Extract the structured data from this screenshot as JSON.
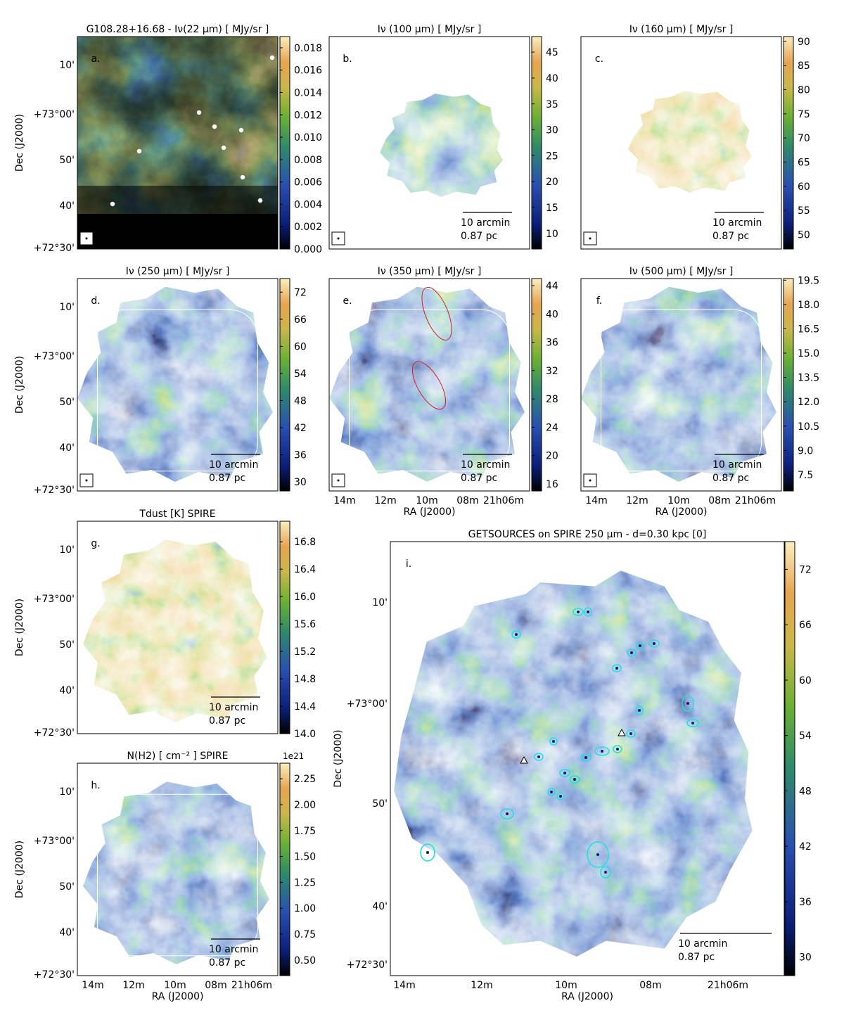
{
  "panels": [
    {
      "id": "a",
      "title": "G108.28+16.68 - Iν(22 μm)  [ MJy/sr ]",
      "letter": "a.",
      "colorbar_ticks": [
        "0.018",
        "0.016",
        "0.014",
        "0.012",
        "0.010",
        "0.008",
        "0.006",
        "0.004",
        "0.002",
        "0.000"
      ],
      "colorbar_range": [
        0.0,
        0.019
      ],
      "dec_ticks": [
        "10'",
        "+73°00'",
        "50'",
        "40'",
        "+72°30'"
      ],
      "ra_ticks": [],
      "scalebar": null
    },
    {
      "id": "b",
      "title": "Iν (100 μm) [ MJy/sr ]",
      "letter": "b.",
      "colorbar_ticks": [
        "45",
        "40",
        "35",
        "30",
        "25",
        "20",
        "15",
        "10"
      ],
      "colorbar_range": [
        7,
        48
      ],
      "dec_ticks": [],
      "ra_ticks": [],
      "scalebar": {
        "line1": "10 arcmin",
        "line2": "0.87 pc"
      }
    },
    {
      "id": "c",
      "title": "Iν (160 μm) [ MJy/sr ]",
      "letter": "c.",
      "colorbar_ticks": [
        "90",
        "85",
        "80",
        "75",
        "70",
        "65",
        "60",
        "55",
        "50"
      ],
      "colorbar_range": [
        47,
        91
      ],
      "dec_ticks": [],
      "ra_ticks": [],
      "scalebar": {
        "line1": "10 arcmin",
        "line2": "0.87 pc"
      }
    },
    {
      "id": "d",
      "title": "Iν (250 μm) [ MJy/sr ]",
      "letter": "d.",
      "colorbar_ticks": [
        "72",
        "66",
        "60",
        "54",
        "48",
        "42",
        "36",
        "30"
      ],
      "colorbar_range": [
        28,
        75
      ],
      "dec_ticks": [
        "10'",
        "+73°00'",
        "50'",
        "40'",
        "+72°30'"
      ],
      "ra_ticks": [],
      "scalebar": {
        "line1": "10 arcmin",
        "line2": "0.87 pc"
      }
    },
    {
      "id": "e",
      "title": "Iν (350 μm) [ MJy/sr ]",
      "letter": "e.",
      "colorbar_ticks": [
        "44",
        "40",
        "36",
        "32",
        "28",
        "24",
        "20",
        "16"
      ],
      "colorbar_range": [
        15,
        45
      ],
      "dec_ticks": [],
      "ra_ticks": [
        "14m",
        "12m",
        "10m",
        "08m",
        "21h06m"
      ],
      "ra_label": "RA (J2000)",
      "scalebar": {
        "line1": "10 arcmin",
        "line2": "0.87 pc"
      }
    },
    {
      "id": "f",
      "title": "Iν (500 μm) [ MJy/sr ]",
      "letter": "f.",
      "colorbar_ticks": [
        "19.5",
        "18.0",
        "16.5",
        "15.0",
        "13.5",
        "12.0",
        "10.5",
        "9.0",
        "7.5"
      ],
      "colorbar_range": [
        6.5,
        19.6
      ],
      "dec_ticks": [],
      "ra_ticks": [
        "14m",
        "12m",
        "10m",
        "08m",
        "21h06m"
      ],
      "ra_label": "RA (J2000)",
      "scalebar": {
        "line1": "10 arcmin",
        "line2": "0.87 pc"
      }
    },
    {
      "id": "g",
      "title": "Tdust [K] SPIRE",
      "letter": "g.",
      "colorbar_ticks": [
        "16.8",
        "16.4",
        "16.0",
        "15.6",
        "15.2",
        "14.8",
        "14.4",
        "14.0"
      ],
      "colorbar_range": [
        14.0,
        17.1
      ],
      "dec_ticks": [
        "10'",
        "+73°00'",
        "50'",
        "40'",
        "+72°30'"
      ],
      "ra_ticks": [],
      "scalebar": {
        "line1": "10 arcmin",
        "line2": "0.87 pc"
      }
    },
    {
      "id": "h",
      "title": "N(H2) [ cm⁻² ] SPIRE",
      "letter": "h.",
      "colorbar_exponent": "1e21",
      "colorbar_ticks": [
        "2.25",
        "2.00",
        "1.75",
        "1.50",
        "1.25",
        "1.00",
        "0.75",
        "0.50"
      ],
      "colorbar_range": [
        0.35,
        2.4
      ],
      "dec_ticks": [
        "10'",
        "+73°00'",
        "50'",
        "40'",
        "+72°30'"
      ],
      "ra_ticks": [
        "14m",
        "12m",
        "10m",
        "08m",
        "21h06m"
      ],
      "ra_label": "RA (J2000)",
      "scalebar": {
        "line1": "10 arcmin",
        "line2": "0.87 pc"
      }
    },
    {
      "id": "i",
      "title": "GETSOURCES on SPIRE 250 μm  -  d=0.30 kpc [0]",
      "letter": "i.",
      "colorbar_ticks": [
        "72",
        "66",
        "60",
        "54",
        "48",
        "42",
        "36",
        "30"
      ],
      "colorbar_range": [
        28,
        75
      ],
      "dec_ticks": [
        "10'",
        "+73°00'",
        "50'",
        "40'",
        "+72°30'"
      ],
      "ra_ticks": [
        "14m",
        "12m",
        "10m",
        "08m",
        "21h06m"
      ],
      "ra_label": "RA (J2000)",
      "scalebar": {
        "line1": "10 arcmin",
        "line2": "0.87 pc"
      }
    }
  ],
  "dec_axis_label": "Dec (J2000)",
  "colors": {
    "black": "#000000",
    "navy": "#0b1f7a",
    "blue": "#2a4fb0",
    "teal": "#2f8a6a",
    "green": "#6ab034",
    "khaki": "#c9b74a",
    "orange": "#e6a552",
    "cream": "#fbeec0",
    "source_ellipse": "#22e0e0",
    "filament_ellipse": "#d42020"
  }
}
